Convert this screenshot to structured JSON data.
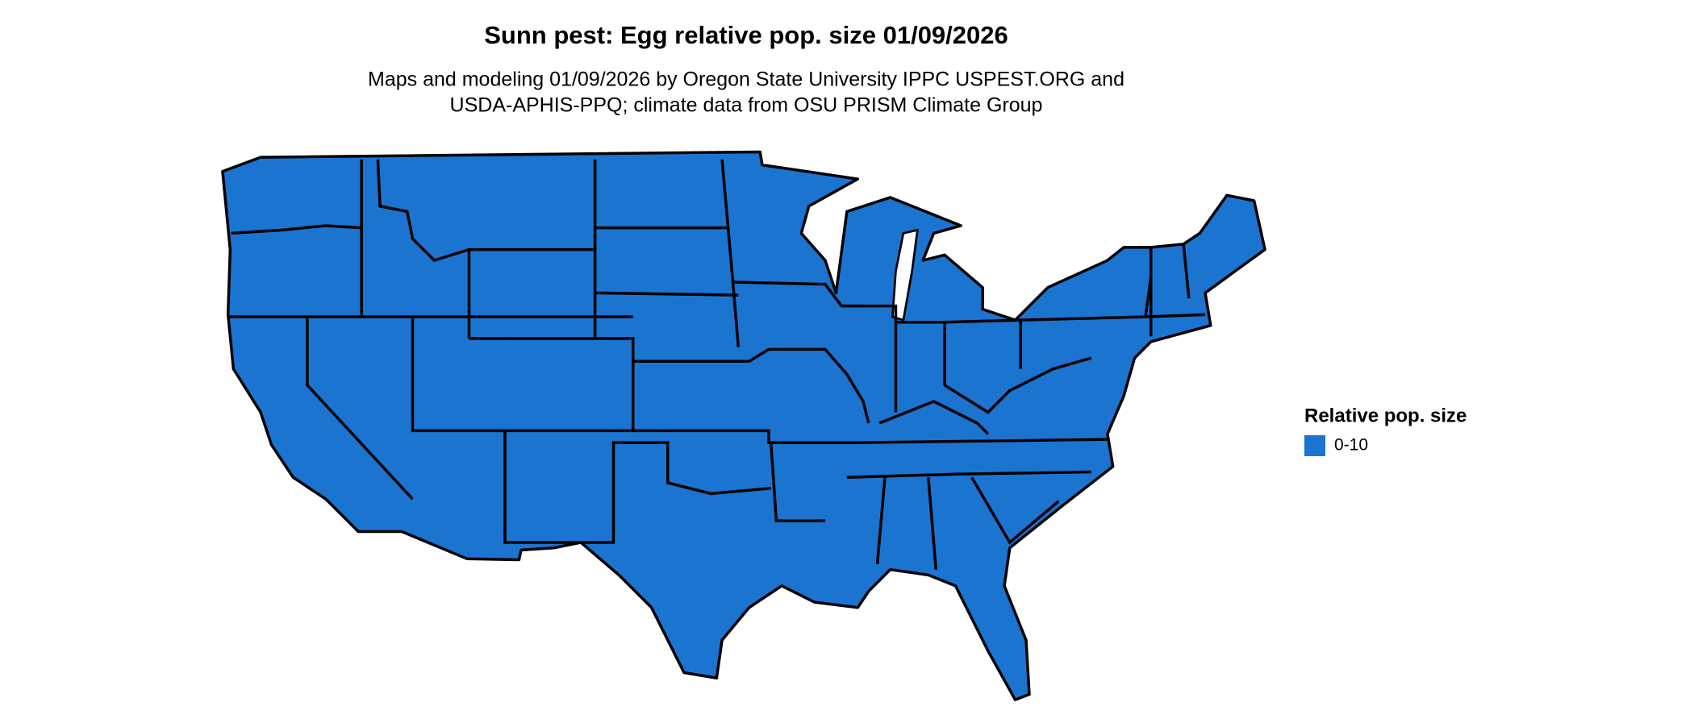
{
  "header": {
    "title": "Sunn pest: Egg relative pop. size 01/09/2026",
    "subtitle": [
      "Maps and modeling 01/09/2026 by Oregon State University IPPC USPEST.ORG and",
      "USDA-APHIS-PPQ; climate data from OSU PRISM Climate Group"
    ]
  },
  "legend": {
    "title": "Relative pop. size",
    "items": [
      {
        "label": "0-10",
        "color": "#1b74d0"
      }
    ]
  }
}
